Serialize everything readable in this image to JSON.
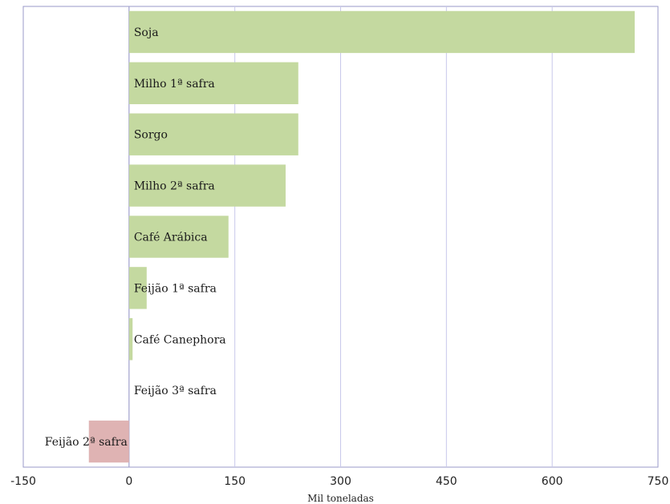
{
  "colors": {
    "positive": "#c4d9a0",
    "negative": "#dfb3b3",
    "grid": "#c8c8ea",
    "frame": "#9a9ac8"
  },
  "chart_data": {
    "type": "bar",
    "orientation": "horizontal",
    "categories": [
      "Soja",
      "Milho 1ª safra",
      "Sorgo",
      "Milho 2ª safra",
      "Café Arábica",
      "Feijão 1ª safra",
      "Café Canephora",
      "Feijão 3ª safra",
      "Feijão 2ª safra"
    ],
    "values": [
      717,
      240,
      240,
      222,
      141,
      25,
      5,
      0,
      -57
    ],
    "xlabel": "Mil toneladas",
    "xlim": [
      -150,
      750
    ],
    "xticks": [
      -150,
      0,
      150,
      300,
      450,
      600,
      750
    ],
    "grid": true,
    "legend": false
  }
}
